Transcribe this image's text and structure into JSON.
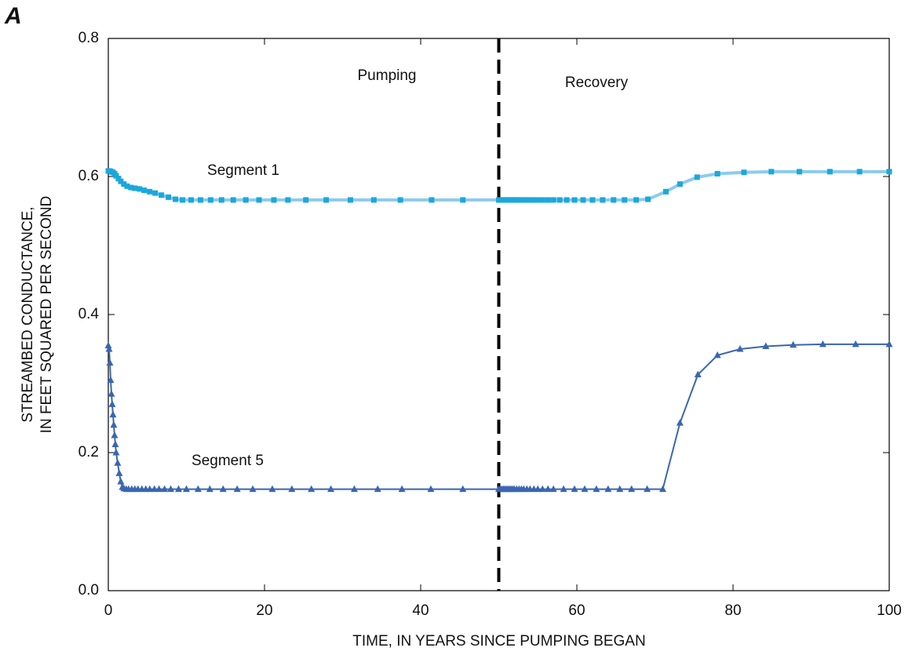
{
  "chart_data": {
    "type": "line",
    "panel_label": "A",
    "xlabel": "TIME, IN YEARS SINCE PUMPING BEGAN",
    "ylabel": [
      "STREAMBED CONDUCTANCE,",
      "IN FEET SQUARED PER SECOND"
    ],
    "annotations": [
      "Pumping",
      "Recovery",
      "Segment 1",
      "Segment 5"
    ],
    "divider_x": 50,
    "xlim": [
      0,
      100
    ],
    "xticks": [
      0,
      20,
      40,
      60,
      80,
      100
    ],
    "ylim": [
      0,
      0.8
    ],
    "yticks": [
      {
        "value": 0,
        "label": "0.0"
      },
      0.2,
      0.4,
      0.6,
      0.8
    ],
    "series": [
      {
        "name": "Segment 1",
        "color": "#1aa8dc",
        "line_color": "#8ccbec",
        "marker": "square",
        "x": [
          0,
          0.2,
          0.4,
          0.6,
          0.8,
          1.0,
          1.3,
          1.6,
          2.0,
          2.4,
          2.9,
          3.4,
          4.0,
          4.6,
          5.3,
          6.0,
          6.8,
          7.7,
          8.6,
          9.5,
          10.6,
          11.8,
          13.1,
          14.5,
          16.0,
          17.6,
          19.3,
          21.2,
          23.0,
          25.3,
          27.9,
          31.0,
          34.0,
          37.4,
          41.4,
          45.4,
          50,
          50.2,
          50.4,
          50.6,
          50.8,
          51.0,
          51.2,
          51.4,
          51.6,
          51.8,
          52.0,
          52.3,
          52.6,
          52.9,
          53.2,
          53.6,
          54.0,
          54.5,
          55.0,
          55.6,
          56.3,
          57.0,
          57.8,
          58.7,
          59.7,
          60.8,
          62.0,
          63.3,
          64.7,
          66.1,
          67.6,
          69.1,
          71.4,
          73.2,
          75.4,
          78.0,
          81.4,
          84.9,
          88.5,
          92.4,
          96.2,
          100
        ],
        "values": [
          0.608,
          0.608,
          0.607,
          0.606,
          0.604,
          0.601,
          0.597,
          0.593,
          0.589,
          0.586,
          0.584,
          0.583,
          0.582,
          0.58,
          0.578,
          0.576,
          0.573,
          0.57,
          0.567,
          0.566,
          0.566,
          0.566,
          0.566,
          0.566,
          0.566,
          0.566,
          0.566,
          0.566,
          0.566,
          0.566,
          0.566,
          0.566,
          0.566,
          0.566,
          0.566,
          0.566,
          0.566,
          0.566,
          0.566,
          0.566,
          0.566,
          0.566,
          0.566,
          0.566,
          0.566,
          0.566,
          0.566,
          0.566,
          0.566,
          0.566,
          0.566,
          0.566,
          0.566,
          0.566,
          0.566,
          0.566,
          0.566,
          0.566,
          0.566,
          0.566,
          0.566,
          0.566,
          0.566,
          0.566,
          0.566,
          0.566,
          0.566,
          0.567,
          0.578,
          0.589,
          0.599,
          0.604,
          0.606,
          0.607,
          0.607,
          0.607,
          0.607,
          0.607
        ]
      },
      {
        "name": "Segment 5",
        "color": "#3a66b0",
        "line_color": "#3a66b0",
        "marker": "triangle",
        "x": [
          0,
          0.1,
          0.2,
          0.3,
          0.4,
          0.5,
          0.6,
          0.7,
          0.8,
          0.9,
          1.0,
          1.2,
          1.4,
          1.6,
          1.8,
          2.0,
          2.3,
          2.6,
          3.0,
          3.4,
          3.8,
          4.3,
          4.8,
          5.3,
          5.9,
          6.5,
          7.2,
          8.0,
          9.0,
          10.0,
          11.5,
          13.0,
          14.7,
          16.5,
          18.5,
          21.0,
          23.5,
          26.0,
          28.5,
          31.5,
          34.5,
          37.6,
          41.3,
          45.4,
          50,
          50.2,
          50.4,
          50.6,
          50.8,
          51.0,
          51.2,
          51.4,
          51.6,
          51.8,
          52.0,
          52.3,
          52.6,
          52.9,
          53.2,
          53.6,
          54.0,
          54.5,
          55.0,
          55.6,
          56.3,
          57.0,
          58.3,
          59.7,
          61.0,
          62.5,
          64.0,
          65.5,
          67.0,
          69.0,
          71.0,
          73.2,
          75.5,
          78.0,
          80.9,
          84.2,
          87.7,
          91.5,
          95.7,
          100
        ],
        "values": [
          0.355,
          0.35,
          0.33,
          0.305,
          0.285,
          0.27,
          0.255,
          0.24,
          0.225,
          0.212,
          0.2,
          0.185,
          0.17,
          0.158,
          0.15,
          0.148,
          0.147,
          0.147,
          0.147,
          0.147,
          0.147,
          0.147,
          0.147,
          0.147,
          0.147,
          0.147,
          0.147,
          0.147,
          0.147,
          0.147,
          0.147,
          0.147,
          0.147,
          0.147,
          0.147,
          0.147,
          0.147,
          0.147,
          0.147,
          0.147,
          0.147,
          0.147,
          0.147,
          0.147,
          0.147,
          0.147,
          0.147,
          0.147,
          0.147,
          0.147,
          0.147,
          0.147,
          0.147,
          0.147,
          0.147,
          0.147,
          0.147,
          0.147,
          0.147,
          0.147,
          0.147,
          0.147,
          0.147,
          0.147,
          0.147,
          0.147,
          0.147,
          0.147,
          0.147,
          0.147,
          0.147,
          0.147,
          0.147,
          0.147,
          0.147,
          0.243,
          0.313,
          0.341,
          0.35,
          0.354,
          0.356,
          0.357,
          0.357,
          0.357
        ]
      }
    ]
  }
}
